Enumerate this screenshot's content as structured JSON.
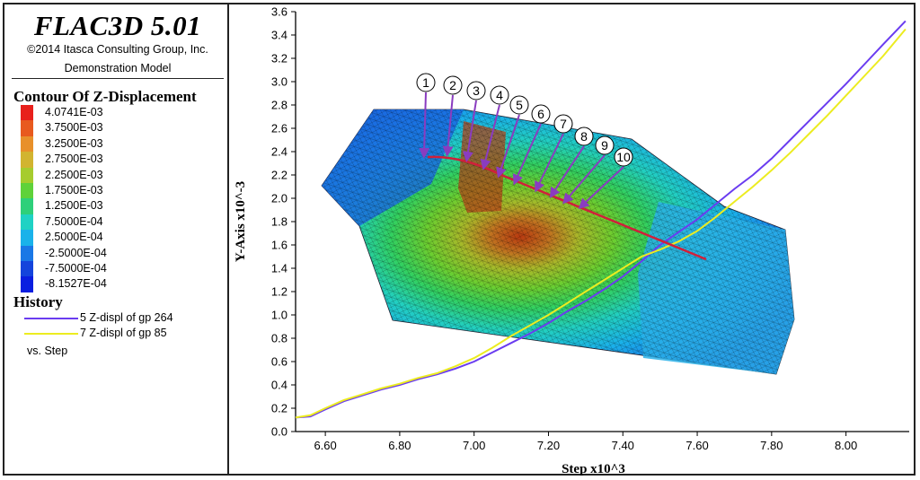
{
  "app_title": "FLAC3D 5.01",
  "copyright": "©2014 Itasca Consulting Group, Inc.",
  "model_name": "Demonstration Model",
  "contour": {
    "title": "Contour Of Z-Displacement",
    "levels": [
      {
        "label": "4.0741E-03",
        "color": "#e8201c"
      },
      {
        "label": "3.7500E-03",
        "color": "#e85a1e"
      },
      {
        "label": "3.2500E-03",
        "color": "#e8902a"
      },
      {
        "label": "2.7500E-03",
        "color": "#d2b430"
      },
      {
        "label": "2.2500E-03",
        "color": "#a6cc2e"
      },
      {
        "label": "1.7500E-03",
        "color": "#5fd23a"
      },
      {
        "label": "1.2500E-03",
        "color": "#2ed07a"
      },
      {
        "label": "7.5000E-04",
        "color": "#1fd2c4"
      },
      {
        "label": "2.5000E-04",
        "color": "#1ab2ea"
      },
      {
        "label": "-2.5000E-04",
        "color": "#1a78e6"
      },
      {
        "label": "-7.5000E-04",
        "color": "#1444dc"
      },
      {
        "label": "-8.1527E-04",
        "color": "#0a1ee0"
      }
    ]
  },
  "history": {
    "title": "History",
    "series_labels": [
      "5 Z-displ of gp 264",
      "7 Z-displ of gp 85"
    ],
    "vs_label": "vs. Step"
  },
  "callouts": [
    "①",
    "②",
    "③",
    "④",
    "⑤",
    "⑥",
    "⑦",
    "⑧",
    "⑨",
    "⑩"
  ],
  "colors": {
    "series_1": "#6a3cf0",
    "series_2": "#ecec20",
    "section_line": "#d0203a",
    "arrow": "#8a3cc0"
  },
  "chart_data": {
    "type": "line",
    "xlabel": "Step x10^3",
    "ylabel": "Y-Axis x10^-3",
    "xlim": [
      6.52,
      8.17
    ],
    "ylim": [
      0,
      3.6
    ],
    "x_ticks": [
      "6.60",
      "6.80",
      "7.00",
      "7.20",
      "7.40",
      "7.60",
      "7.80",
      "8.00"
    ],
    "y_ticks": [
      "0.0",
      "0.2",
      "0.4",
      "0.6",
      "0.8",
      "1.0",
      "1.2",
      "1.4",
      "1.6",
      "1.8",
      "2.0",
      "2.2",
      "2.4",
      "2.6",
      "2.8",
      "3.0",
      "3.2",
      "3.4",
      "3.6"
    ],
    "series": [
      {
        "name": "5 Z-displ of gp 264",
        "x": [
          6.52,
          6.56,
          6.6,
          6.65,
          6.7,
          6.75,
          6.8,
          6.85,
          6.9,
          6.95,
          7.0,
          7.05,
          7.1,
          7.15,
          7.2,
          7.25,
          7.3,
          7.35,
          7.4,
          7.45,
          7.5,
          7.55,
          7.6,
          7.65,
          7.7,
          7.75,
          7.8,
          7.85,
          7.9,
          7.95,
          8.0,
          8.05,
          8.1,
          8.16
        ],
        "y": [
          0.12,
          0.13,
          0.19,
          0.26,
          0.31,
          0.36,
          0.4,
          0.45,
          0.49,
          0.54,
          0.6,
          0.68,
          0.76,
          0.84,
          0.93,
          1.03,
          1.12,
          1.22,
          1.33,
          1.46,
          1.6,
          1.71,
          1.82,
          1.95,
          2.08,
          2.2,
          2.34,
          2.5,
          2.66,
          2.82,
          2.98,
          3.15,
          3.32,
          3.52
        ]
      },
      {
        "name": "7 Z-displ of gp 85",
        "x": [
          6.52,
          6.56,
          6.6,
          6.65,
          6.7,
          6.75,
          6.8,
          6.85,
          6.9,
          6.95,
          7.0,
          7.05,
          7.1,
          7.15,
          7.2,
          7.25,
          7.3,
          7.35,
          7.4,
          7.45,
          7.5,
          7.55,
          7.6,
          7.65,
          7.7,
          7.75,
          7.8,
          7.85,
          7.9,
          7.95,
          8.0,
          8.05,
          8.1,
          8.16
        ],
        "y": [
          0.12,
          0.14,
          0.2,
          0.27,
          0.32,
          0.37,
          0.41,
          0.46,
          0.5,
          0.56,
          0.63,
          0.72,
          0.82,
          0.91,
          1.0,
          1.1,
          1.2,
          1.3,
          1.4,
          1.5,
          1.56,
          1.63,
          1.72,
          1.84,
          1.97,
          2.1,
          2.24,
          2.39,
          2.55,
          2.71,
          2.88,
          3.05,
          3.22,
          3.45
        ]
      }
    ]
  }
}
